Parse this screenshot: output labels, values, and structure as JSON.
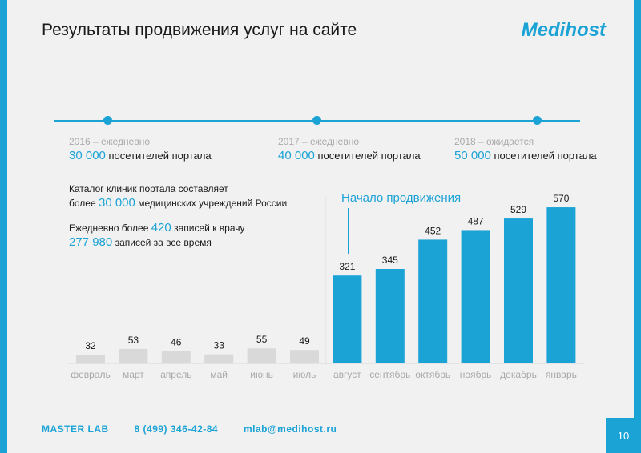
{
  "header": {
    "title": "Результаты продвижения услуг на сайте",
    "logo": "Medihost"
  },
  "timeline": [
    {
      "label": "2016 – ежедневно",
      "value": "30 000",
      "suffix": "посетителей портала"
    },
    {
      "label": "2017 – ежедневно",
      "value": "40 000",
      "suffix": "посетителей портала"
    },
    {
      "label": "2018 – ожидается",
      "value": "50 000",
      "suffix": "посетителей портала"
    }
  ],
  "info": {
    "catalog_line1": "Каталог клиник портала составляет",
    "catalog_line2_prefix": "более",
    "catalog_line2_value": "30 000",
    "catalog_line2_suffix": "медицинских учреждений России",
    "daily_prefix": "Ежедневно более",
    "daily_value": "420",
    "daily_suffix": "записей к врачу",
    "total_value": "277 980",
    "total_suffix": "записей за все время"
  },
  "annotation": {
    "text": "Начало продвижения"
  },
  "chart_data": {
    "type": "bar",
    "categories": [
      "февраль",
      "март",
      "апрель",
      "май",
      "июнь",
      "июль",
      "август",
      "сентябрь",
      "октябрь",
      "ноябрь",
      "декабрь",
      "январь"
    ],
    "values": [
      32,
      53,
      46,
      33,
      55,
      49,
      321,
      345,
      452,
      487,
      529,
      570
    ],
    "highlight_from_index": 6,
    "colors": {
      "before": "#d9d9d9",
      "after": "#1ba3d6"
    },
    "grid": false
  },
  "footer": {
    "company": "MASTER LAB",
    "phone": "8 (499) 346-42-84",
    "email": "mlab@medihost.ru",
    "page": "10"
  }
}
